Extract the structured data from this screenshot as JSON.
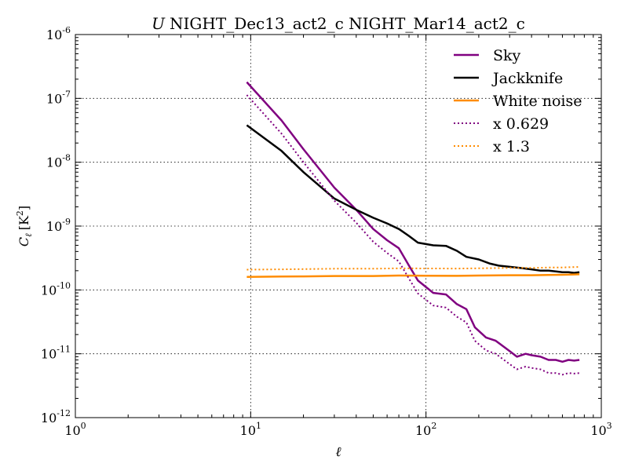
{
  "chart_data": {
    "type": "line",
    "title_symbol": "U",
    "title": "NIGHT_Dec13_act2_c NIGHT_Mar14_act2_c",
    "xlabel": "ℓ",
    "ylabel_main": "C",
    "ylabel_sub": "ℓ",
    "ylabel_units": "[K",
    "ylabel_units_exp": "2",
    "ylabel_units_close": "]",
    "xscale": "log",
    "yscale": "log",
    "xlim": [
      1,
      1000
    ],
    "ylim": [
      1e-12,
      1e-06
    ],
    "grid": true,
    "legend_position": "top-right",
    "x_ticks": [
      {
        "value": 1,
        "base": "10",
        "exp": "0"
      },
      {
        "value": 10,
        "base": "10",
        "exp": "1"
      },
      {
        "value": 100,
        "base": "10",
        "exp": "2"
      },
      {
        "value": 1000,
        "base": "10",
        "exp": "3"
      }
    ],
    "y_ticks": [
      {
        "value": 1e-12,
        "base": "10",
        "exp": "-12"
      },
      {
        "value": 1e-11,
        "base": "10",
        "exp": "-11"
      },
      {
        "value": 1e-10,
        "base": "10",
        "exp": "-10"
      },
      {
        "value": 1e-09,
        "base": "10",
        "exp": "-9"
      },
      {
        "value": 1e-08,
        "base": "10",
        "exp": "-8"
      },
      {
        "value": 1e-07,
        "base": "10",
        "exp": "-7"
      },
      {
        "value": 1e-06,
        "base": "10",
        "exp": "-6"
      }
    ],
    "series": [
      {
        "name": "Sky",
        "color": "#800080",
        "style": "solid",
        "x": [
          9.5,
          15,
          20,
          30,
          40,
          50,
          60,
          70,
          80,
          90,
          110,
          130,
          150,
          170,
          190,
          220,
          250,
          300,
          330,
          370,
          400,
          450,
          500,
          550,
          600,
          650,
          700,
          750
        ],
        "y": [
          1.8e-07,
          4.5e-08,
          1.6e-08,
          4e-09,
          1.8e-09,
          9e-10,
          6e-10,
          4.5e-10,
          2.4e-10,
          1.4e-10,
          9e-11,
          8.5e-11,
          6e-11,
          5e-11,
          2.6e-11,
          1.8e-11,
          1.6e-11,
          1.1e-11,
          9e-12,
          1e-11,
          9.5e-12,
          9e-12,
          8e-12,
          8e-12,
          7.5e-12,
          8e-12,
          7.8e-12,
          8e-12
        ]
      },
      {
        "name": "Jackknife",
        "color": "#000000",
        "style": "solid",
        "x": [
          9.5,
          15,
          20,
          30,
          40,
          50,
          60,
          70,
          80,
          90,
          110,
          130,
          150,
          170,
          200,
          230,
          260,
          300,
          350,
          400,
          450,
          500,
          550,
          600,
          650,
          700,
          750
        ],
        "y": [
          3.8e-08,
          1.5e-08,
          7e-09,
          2.7e-09,
          1.8e-09,
          1.35e-09,
          1.1e-09,
          9e-10,
          7e-10,
          5.5e-10,
          5e-10,
          4.9e-10,
          4.1e-10,
          3.3e-10,
          3e-10,
          2.6e-10,
          2.4e-10,
          2.3e-10,
          2.2e-10,
          2.1e-10,
          2e-10,
          2e-10,
          1.95e-10,
          1.9e-10,
          1.9e-10,
          1.85e-10,
          1.9e-10
        ]
      },
      {
        "name": "White noise",
        "color": "#ff8c00",
        "style": "solid",
        "x": [
          9.5,
          15,
          20,
          30,
          50,
          70,
          100,
          150,
          200,
          300,
          400,
          500,
          600,
          700,
          750
        ],
        "y": [
          1.6e-10,
          1.62e-10,
          1.63e-10,
          1.65e-10,
          1.65e-10,
          1.68e-10,
          1.67e-10,
          1.66e-10,
          1.68e-10,
          1.7e-10,
          1.7e-10,
          1.72e-10,
          1.73e-10,
          1.75e-10,
          1.76e-10
        ]
      },
      {
        "name": "x 0.629",
        "color": "#800080",
        "style": "dotted",
        "x": [
          9.5,
          15,
          20,
          30,
          40,
          50,
          60,
          70,
          80,
          90,
          110,
          130,
          150,
          170,
          190,
          220,
          250,
          300,
          330,
          370,
          400,
          450,
          500,
          550,
          600,
          650,
          700,
          750
        ],
        "y": [
          1.13e-07,
          2.8e-08,
          1e-08,
          2.5e-09,
          1.13e-09,
          5.7e-10,
          3.8e-10,
          2.8e-10,
          1.5e-10,
          8.8e-11,
          5.7e-11,
          5.3e-11,
          3.8e-11,
          3.1e-11,
          1.6e-11,
          1.13e-11,
          1e-11,
          6.9e-12,
          5.7e-12,
          6.3e-12,
          6e-12,
          5.7e-12,
          5e-12,
          5e-12,
          4.7e-12,
          5e-12,
          4.9e-12,
          5e-12
        ]
      },
      {
        "name": "x 1.3",
        "color": "#ff8c00",
        "style": "dotted",
        "x": [
          9.5,
          15,
          20,
          30,
          50,
          70,
          100,
          150,
          200,
          300,
          400,
          500,
          600,
          700,
          750
        ],
        "y": [
          2.08e-10,
          2.1e-10,
          2.12e-10,
          2.15e-10,
          2.15e-10,
          2.18e-10,
          2.17e-10,
          2.16e-10,
          2.18e-10,
          2.21e-10,
          2.21e-10,
          2.24e-10,
          2.25e-10,
          2.28e-10,
          2.29e-10
        ]
      }
    ]
  }
}
